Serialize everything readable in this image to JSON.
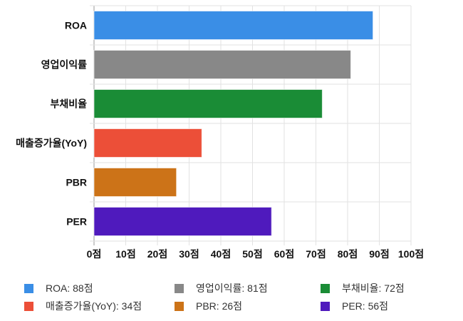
{
  "chart_data": {
    "type": "bar",
    "orientation": "horizontal",
    "categories": [
      "ROA",
      "영업이익률",
      "부채비율",
      "매출증가율(YoY)",
      "PBR",
      "PER"
    ],
    "values": [
      88,
      81,
      72,
      34,
      26,
      56
    ],
    "colors": [
      "#3a8ee6",
      "#888888",
      "#1a8c36",
      "#ec4f38",
      "#cc7318",
      "#4f1abd"
    ],
    "xlim": [
      0,
      100
    ],
    "xticks": [
      0,
      10,
      20,
      30,
      40,
      50,
      60,
      70,
      80,
      90,
      100
    ],
    "tick_suffix": "점",
    "grid": true,
    "legend_position": "bottom",
    "legend": [
      "ROA: 88점",
      "영업이익률: 81점",
      "부채비율: 72점",
      "매출증가율(YoY): 34점",
      "PBR: 26점",
      "PER: 56점"
    ]
  }
}
